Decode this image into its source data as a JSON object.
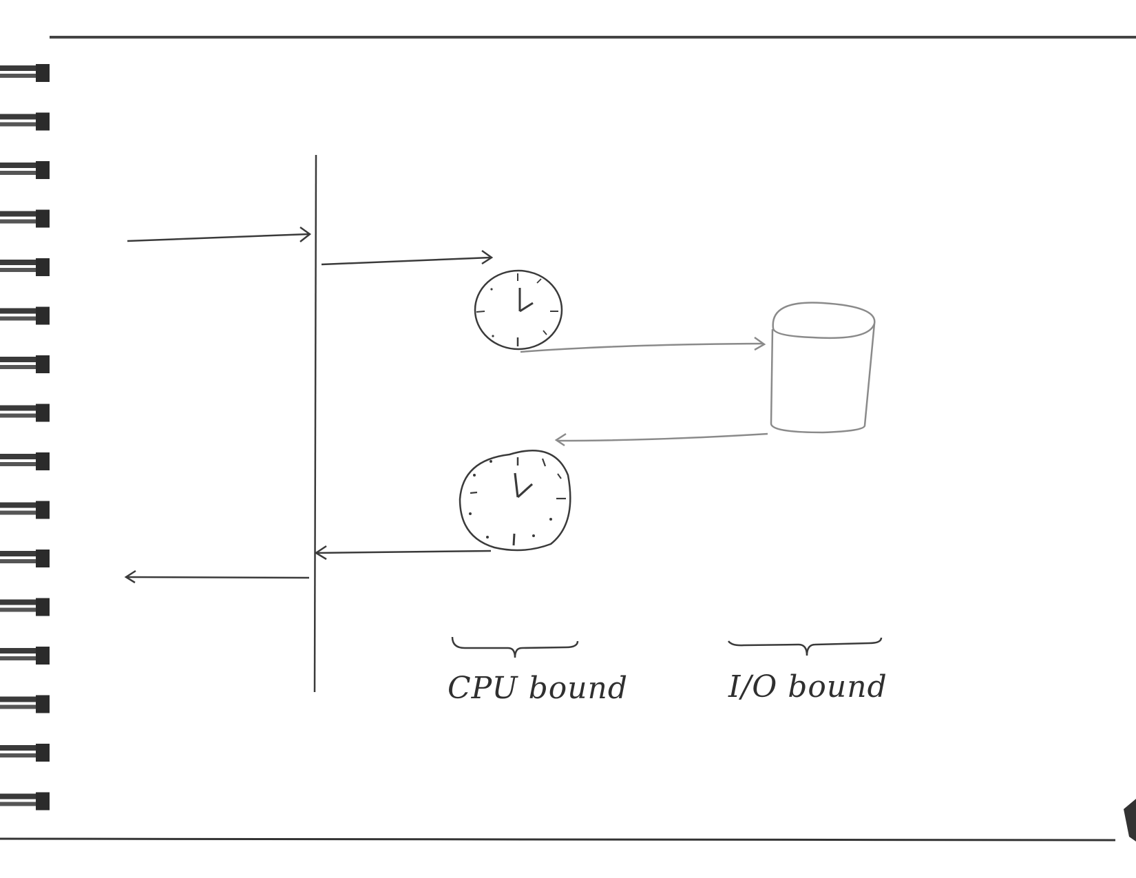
{
  "labels": {
    "cpu_bound": "CPU bound",
    "io_bound": "I/O bound"
  },
  "icons": {
    "upper_clock": "clock-icon",
    "lower_clock": "clock-icon",
    "storage": "database-cylinder-icon"
  },
  "colors": {
    "paper": "#ffffff",
    "ink": "#3a3a3a",
    "pencil_light": "#8a8a8a",
    "spiral": "#2b2b2b"
  }
}
